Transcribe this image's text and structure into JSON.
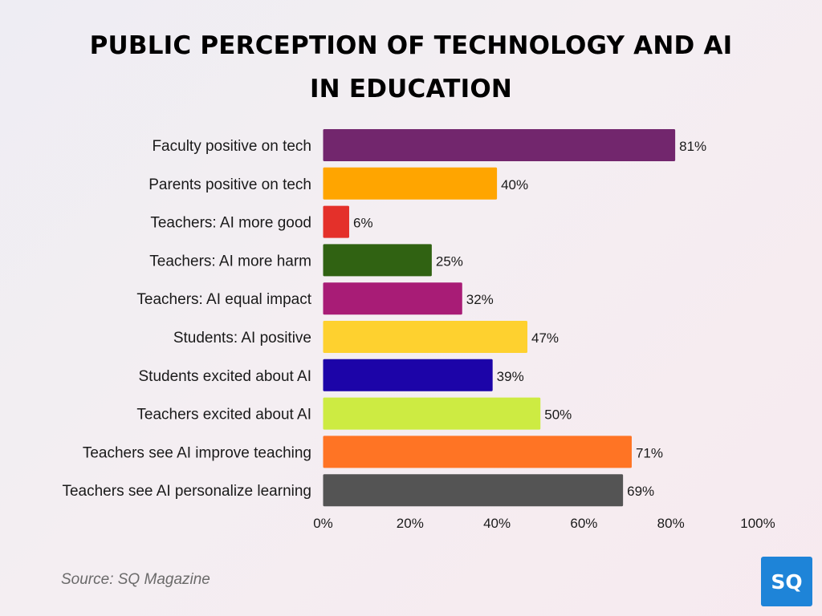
{
  "chart_data": {
    "type": "bar",
    "orientation": "horizontal",
    "title_lines": [
      "PUBLIC PERCEPTION OF TECHNOLOGY AND AI",
      "IN EDUCATION"
    ],
    "categories": [
      "Faculty positive on tech",
      "Parents positive on tech",
      "Teachers: AI more good",
      "Teachers: AI more harm",
      "Teachers: AI equal impact",
      "Students: AI positive",
      "Students excited about AI",
      "Teachers excited about AI",
      "Teachers see AI improve teaching",
      "Teachers see AI personalize learning"
    ],
    "values": [
      81,
      40,
      6,
      25,
      32,
      47,
      39,
      50,
      71,
      69
    ],
    "value_labels": [
      "81%",
      "40%",
      "6%",
      "25%",
      "32%",
      "47%",
      "39%",
      "50%",
      "71%",
      "69%"
    ],
    "colors": [
      "#72266d",
      "#ffa500",
      "#e4302a",
      "#306212",
      "#a81c76",
      "#fed12f",
      "#1c04a8",
      "#cdeb42",
      "#ff7424",
      "#545454"
    ],
    "xlim": [
      0,
      100
    ],
    "xticks": [
      0,
      20,
      40,
      60,
      80,
      100
    ],
    "xtick_labels": [
      "0%",
      "20%",
      "40%",
      "60%",
      "80%",
      "100%"
    ],
    "grid": false,
    "legend": "none"
  },
  "source": "Source: SQ Magazine",
  "logo_text": "SQ"
}
